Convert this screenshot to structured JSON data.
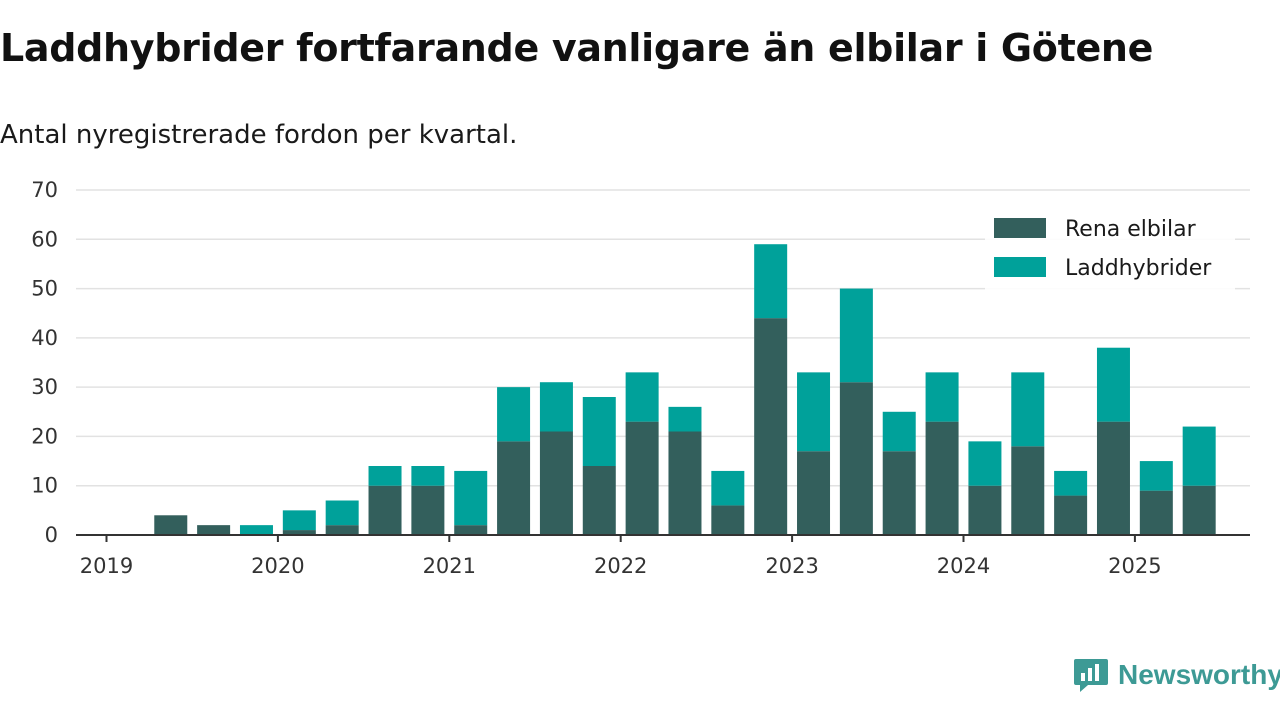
{
  "title": "Laddhybrider fortfarande vanligare än elbilar i Götene",
  "subtitle": "Antal nyregistrerade fordon per kvartal.",
  "brand": {
    "name": "Newsworthy",
    "color": "#3d9a95"
  },
  "colors": {
    "rena_elbilar": "#335f5c",
    "laddhybrider": "#00a19a",
    "grid": "#e2e2e2",
    "axis": "#333333"
  },
  "chart_data": {
    "type": "bar",
    "stacked": true,
    "title": "Laddhybrider fortfarande vanligare än elbilar i Götene",
    "subtitle": "Antal nyregistrerade fordon per kvartal.",
    "xlabel": "",
    "ylabel": "",
    "categories": [
      "2019 Q1",
      "2019 Q2",
      "2019 Q3",
      "2019 Q4",
      "2020 Q1",
      "2020 Q2",
      "2020 Q3",
      "2020 Q4",
      "2021 Q1",
      "2021 Q2",
      "2021 Q3",
      "2021 Q4",
      "2022 Q1",
      "2022 Q2",
      "2022 Q3",
      "2022 Q4",
      "2023 Q1",
      "2023 Q2",
      "2023 Q3",
      "2023 Q4",
      "2024 Q1",
      "2024 Q2",
      "2024 Q3",
      "2024 Q4",
      "2025 Q1",
      "2025 Q2",
      "2025 Q3"
    ],
    "series": [
      {
        "name": "Rena elbilar",
        "values": [
          0,
          4,
          2,
          0,
          1,
          2,
          10,
          10,
          2,
          19,
          21,
          14,
          23,
          21,
          6,
          44,
          17,
          31,
          17,
          23,
          10,
          18,
          8,
          23,
          9,
          10,
          0
        ]
      },
      {
        "name": "Laddhybrider",
        "values": [
          0,
          0,
          0,
          2,
          4,
          5,
          4,
          4,
          11,
          11,
          10,
          14,
          10,
          5,
          7,
          15,
          16,
          19,
          8,
          10,
          9,
          15,
          5,
          15,
          6,
          12,
          0
        ]
      }
    ],
    "x_tick_labels": [
      "2019",
      "2020",
      "2021",
      "2022",
      "2023",
      "2024",
      "2025"
    ],
    "y_ticks": [
      0,
      10,
      20,
      30,
      40,
      50,
      60,
      70
    ],
    "ylim": [
      0,
      70
    ],
    "grid": true,
    "legend": {
      "position": "top-right",
      "entries": [
        "Rena elbilar",
        "Laddhybrider"
      ]
    }
  }
}
